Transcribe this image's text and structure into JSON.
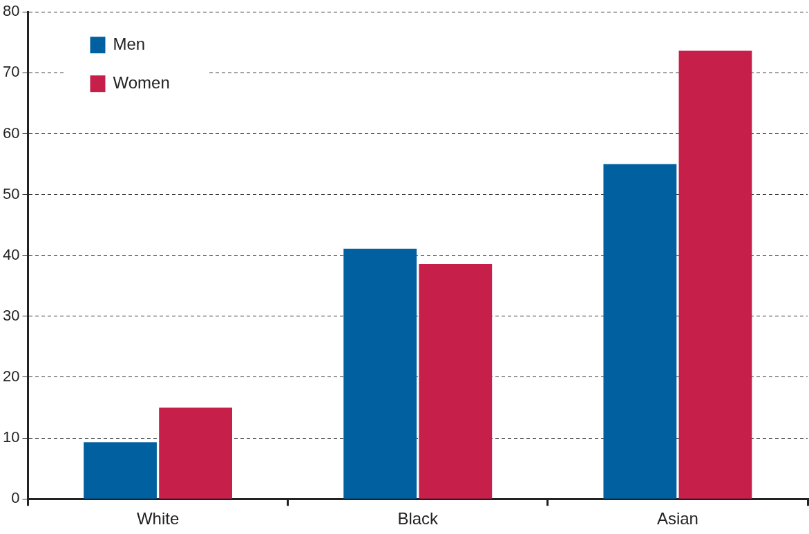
{
  "chart_data": {
    "type": "bar",
    "categories": [
      "White",
      "Black",
      "Asian"
    ],
    "series": [
      {
        "name": "Men",
        "color": "#0060a0",
        "values": [
          9.3,
          41.1,
          55.0
        ]
      },
      {
        "name": "Women",
        "color": "#c51f4a",
        "values": [
          15.0,
          38.6,
          73.6
        ]
      }
    ],
    "ylim": [
      0,
      80
    ],
    "yticks": [
      0,
      10,
      20,
      30,
      40,
      50,
      60,
      70,
      80
    ],
    "grid": "y",
    "legend": "top left"
  }
}
